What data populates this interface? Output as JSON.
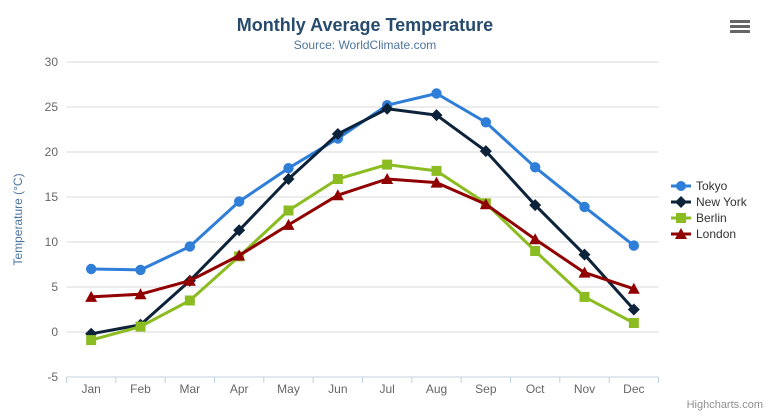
{
  "chart_data": {
    "type": "line",
    "title": "Monthly Average Temperature",
    "subtitle": "Source: WorldClimate.com",
    "xlabel": "",
    "ylabel": "Temperature (°C)",
    "categories": [
      "Jan",
      "Feb",
      "Mar",
      "Apr",
      "May",
      "Jun",
      "Jul",
      "Aug",
      "Sep",
      "Oct",
      "Nov",
      "Dec"
    ],
    "ylim": [
      -5,
      30
    ],
    "ytick_interval": 5,
    "yticks": [
      -5,
      0,
      5,
      10,
      15,
      20,
      25,
      30
    ],
    "grid": true,
    "legend_position": "right",
    "series": [
      {
        "name": "Tokyo",
        "color": "#2f7ed8",
        "marker": "circle",
        "values": [
          7.0,
          6.9,
          9.5,
          14.5,
          18.2,
          21.5,
          25.2,
          26.5,
          23.3,
          18.3,
          13.9,
          9.6
        ]
      },
      {
        "name": "New York",
        "color": "#0d233a",
        "marker": "diamond",
        "values": [
          -0.2,
          0.8,
          5.7,
          11.3,
          17.0,
          22.0,
          24.8,
          24.1,
          20.1,
          14.1,
          8.6,
          2.5
        ]
      },
      {
        "name": "Berlin",
        "color": "#8bbc21",
        "marker": "square",
        "values": [
          -0.9,
          0.6,
          3.5,
          8.4,
          13.5,
          17.0,
          18.6,
          17.9,
          14.3,
          9.0,
          3.9,
          1.0
        ]
      },
      {
        "name": "London",
        "color": "#910000",
        "marker": "triangle",
        "values": [
          3.9,
          4.2,
          5.7,
          8.5,
          11.9,
          15.2,
          17.0,
          16.6,
          14.2,
          10.3,
          6.6,
          4.8
        ]
      }
    ]
  },
  "credits": {
    "label": "Highcharts.com"
  },
  "theme": {
    "title_color": "#274b6d",
    "subtitle_color": "#4d759e",
    "axis_label_color": "#666666",
    "axis_title_color": "#4d759e",
    "legend_text_color": "#333333",
    "grid_line_color": "#d8d8d8",
    "axis_line_color": "#c0d0e0",
    "credits_color": "#909090",
    "menu_icon_color": "#666666",
    "background": "#ffffff"
  }
}
